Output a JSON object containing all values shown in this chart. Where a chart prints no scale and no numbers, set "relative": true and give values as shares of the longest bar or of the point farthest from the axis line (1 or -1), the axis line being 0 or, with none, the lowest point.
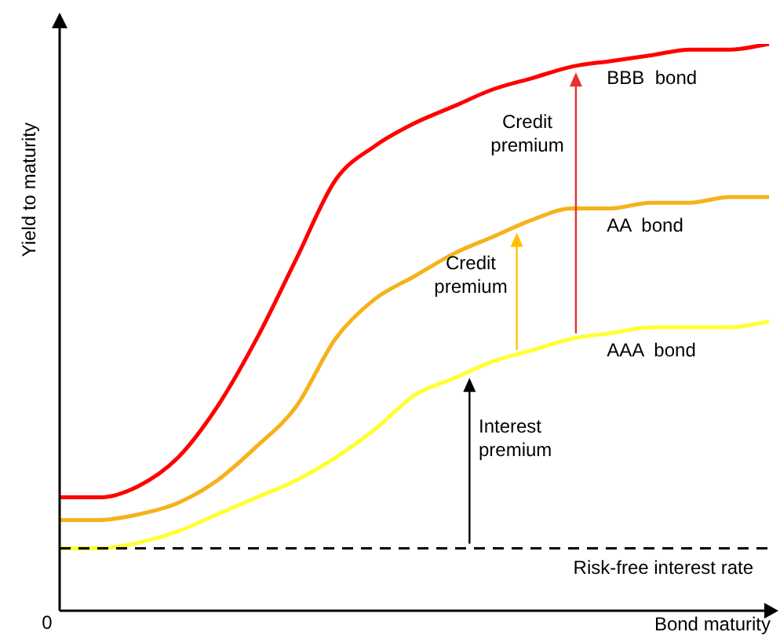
{
  "chart_data": {
    "type": "line",
    "relative": true,
    "xlabel": "Bond maturity",
    "ylabel": "Yield to maturity",
    "categories": [
      null,
      null,
      null,
      null,
      null,
      null,
      null,
      null,
      null,
      null,
      null,
      null,
      null,
      null,
      null,
      null,
      null,
      null,
      null
    ],
    "series": [
      {
        "name": "BBB  bond",
        "color": "#ff0000",
        "values": [
          0.2,
          0.2,
          0.22,
          0.27,
          0.36,
          0.48,
          0.62,
          0.76,
          0.82,
          0.86,
          0.89,
          0.92,
          0.94,
          0.96,
          0.97,
          0.98,
          0.99,
          0.99,
          1.0
        ]
      },
      {
        "name": "AA  bond",
        "color": "#f5b21a",
        "values": [
          0.16,
          0.16,
          0.17,
          0.19,
          0.23,
          0.29,
          0.36,
          0.48,
          0.55,
          0.59,
          0.63,
          0.66,
          0.69,
          0.71,
          0.71,
          0.72,
          0.72,
          0.73,
          0.73
        ]
      },
      {
        "name": "AAA  bond",
        "color": "#ffff33",
        "values": [
          0.11,
          0.11,
          0.12,
          0.14,
          0.17,
          0.2,
          0.23,
          0.27,
          0.32,
          0.38,
          0.41,
          0.44,
          0.46,
          0.48,
          0.49,
          0.5,
          0.5,
          0.5,
          0.51
        ]
      }
    ],
    "ref_lines": [
      {
        "axis": "y",
        "value": 0.11,
        "label": "Risk-free interest rate",
        "color": "#000000",
        "line_style": "dashed"
      }
    ],
    "annotations": [
      "Credit premium",
      "Credit premium",
      "Interest premium",
      "0"
    ],
    "legend": false,
    "marker": "none",
    "line_style": "solid"
  }
}
